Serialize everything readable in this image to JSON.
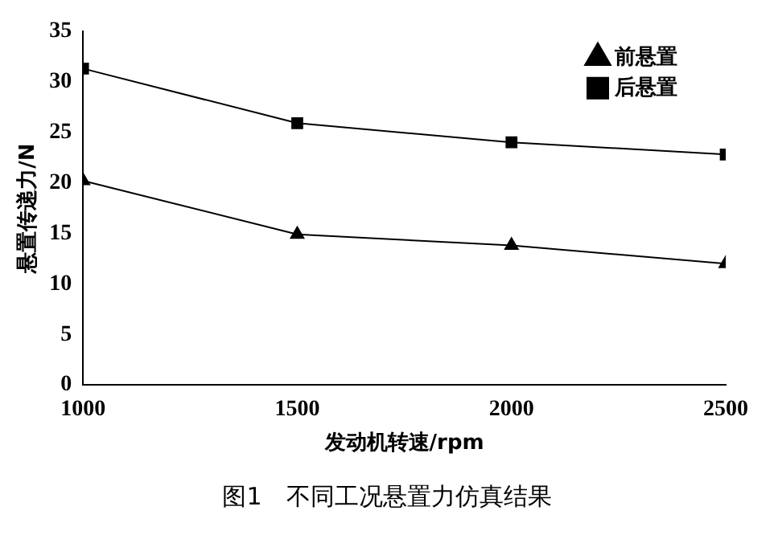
{
  "chart_data": {
    "type": "line",
    "title": "图1　不同工况悬置力仿真结果",
    "xlabel": "发动机转速/rpm",
    "ylabel": "悬置传递力/N",
    "x": [
      1000,
      1500,
      2000,
      2500
    ],
    "series": [
      {
        "name": "前悬置",
        "color": "#000000",
        "marker": "triangle",
        "values": [
          20.2,
          14.9,
          13.8,
          12.0
        ]
      },
      {
        "name": "后悬置",
        "color": "#000000",
        "marker": "square",
        "values": [
          31.3,
          25.9,
          24.0,
          22.8
        ]
      }
    ],
    "xlim": [
      1000,
      2500
    ],
    "xticks": [
      1000,
      1500,
      2000,
      2500
    ],
    "ylim": [
      0,
      35
    ],
    "yticks": [
      0,
      5,
      10,
      15,
      20,
      25,
      30,
      35
    ],
    "grid": false,
    "legend": "top right",
    "line_style": "solid"
  }
}
